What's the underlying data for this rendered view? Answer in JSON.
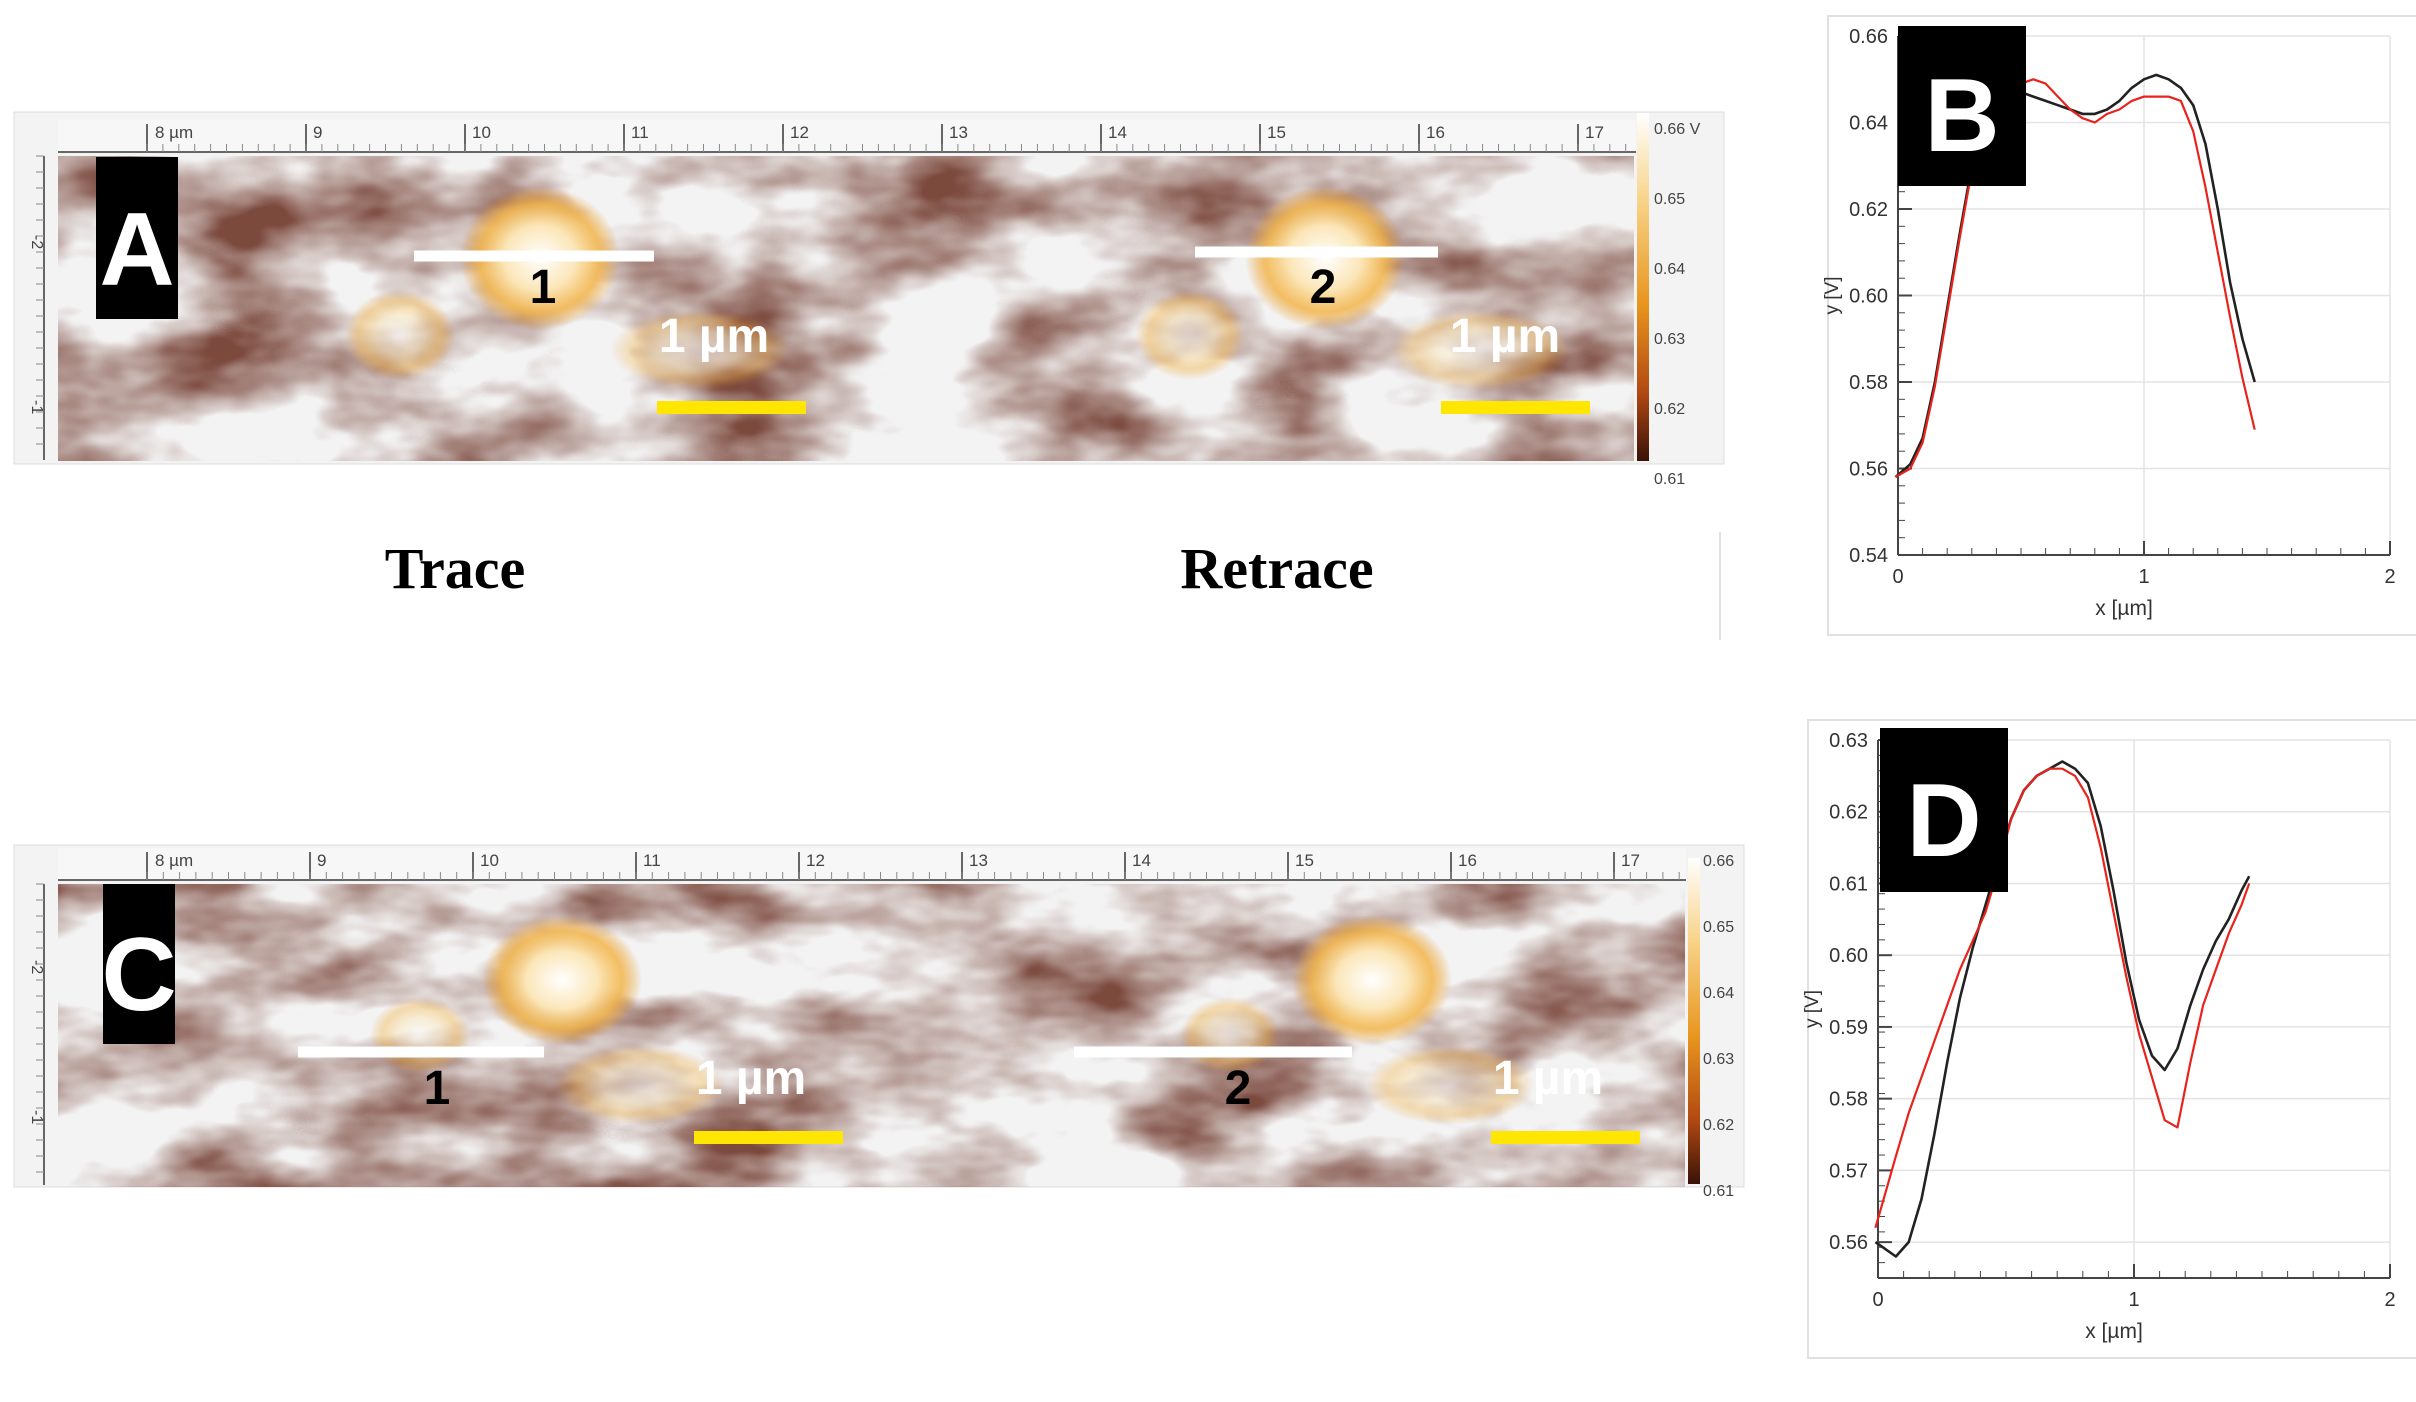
{
  "panels": {
    "A": {
      "letter": "A",
      "axis_unit_label": "8 µm",
      "x_ticks": [
        "9",
        "10",
        "11",
        "12",
        "13",
        "14",
        "15",
        "16",
        "17"
      ],
      "y_ticks": [
        "-2",
        "-1"
      ],
      "colorbar_ticks": [
        "0.66 V",
        "0.65",
        "0.64",
        "0.63",
        "0.62",
        "0.61"
      ],
      "line_labels": [
        "1",
        "2"
      ],
      "scale_label": "1 µm",
      "captions": [
        "Trace",
        "Retrace"
      ]
    },
    "C": {
      "letter": "C",
      "axis_unit_label": "8 µm",
      "x_ticks": [
        "9",
        "10",
        "11",
        "12",
        "13",
        "14",
        "15",
        "16",
        "17"
      ],
      "y_ticks": [
        "-2",
        "-1"
      ],
      "colorbar_ticks": [
        "0.66",
        "0.65",
        "0.64",
        "0.63",
        "0.62",
        "0.61"
      ],
      "line_labels": [
        "1",
        "2"
      ],
      "scale_label": "1 µm"
    }
  },
  "chart_data": [
    {
      "panel": "B",
      "type": "line",
      "title": "",
      "xlabel": "x [µm]",
      "ylabel": "y [V]",
      "xlim": [
        0,
        2
      ],
      "ylim": [
        0.54,
        0.66
      ],
      "x_ticks": [
        "0",
        "1",
        "2"
      ],
      "y_ticks": [
        "0.54",
        "0.56",
        "0.58",
        "0.60",
        "0.62",
        "0.64",
        "0.66"
      ],
      "grid": true,
      "series": [
        {
          "color": "#222222",
          "x": [
            -0.01,
            0.05,
            0.1,
            0.15,
            0.2,
            0.25,
            0.3,
            0.35,
            0.4,
            0.45,
            0.5,
            0.55,
            0.6,
            0.65,
            0.7,
            0.75,
            0.8,
            0.85,
            0.9,
            0.95,
            1.0,
            1.05,
            1.1,
            1.15,
            1.2,
            1.25,
            1.3,
            1.35,
            1.4,
            1.45
          ],
          "y": [
            0.558,
            0.561,
            0.567,
            0.58,
            0.597,
            0.614,
            0.63,
            0.641,
            0.645,
            0.647,
            0.647,
            0.646,
            0.645,
            0.644,
            0.643,
            0.642,
            0.642,
            0.643,
            0.645,
            0.648,
            0.65,
            0.651,
            0.65,
            0.648,
            0.644,
            0.635,
            0.62,
            0.603,
            0.59,
            0.58
          ]
        },
        {
          "color": "#e8231c",
          "x": [
            -0.01,
            0.05,
            0.1,
            0.15,
            0.2,
            0.25,
            0.3,
            0.35,
            0.4,
            0.45,
            0.5,
            0.55,
            0.6,
            0.65,
            0.7,
            0.75,
            0.8,
            0.85,
            0.9,
            0.95,
            1.0,
            1.05,
            1.1,
            1.15,
            1.2,
            1.25,
            1.3,
            1.35,
            1.4,
            1.45
          ],
          "y": [
            0.558,
            0.56,
            0.566,
            0.579,
            0.596,
            0.613,
            0.629,
            0.64,
            0.646,
            0.649,
            0.649,
            0.65,
            0.649,
            0.646,
            0.643,
            0.641,
            0.64,
            0.642,
            0.643,
            0.645,
            0.646,
            0.646,
            0.646,
            0.645,
            0.638,
            0.625,
            0.61,
            0.595,
            0.581,
            0.569
          ]
        }
      ]
    },
    {
      "panel": "D",
      "type": "line",
      "title": "",
      "xlabel": "x [µm]",
      "ylabel": "y [V]",
      "xlim": [
        0,
        2
      ],
      "ylim": [
        0.555,
        0.63
      ],
      "x_ticks": [
        "0",
        "1",
        "2"
      ],
      "y_ticks": [
        "0.56",
        "0.57",
        "0.58",
        "0.59",
        "0.60",
        "0.61",
        "0.62",
        "0.63"
      ],
      "grid": true,
      "series": [
        {
          "color": "#222222",
          "x": [
            -0.01,
            0.03,
            0.07,
            0.12,
            0.17,
            0.22,
            0.27,
            0.32,
            0.37,
            0.42,
            0.47,
            0.52,
            0.57,
            0.62,
            0.67,
            0.72,
            0.77,
            0.82,
            0.87,
            0.92,
            0.97,
            1.02,
            1.07,
            1.12,
            1.17,
            1.22,
            1.27,
            1.32,
            1.37,
            1.42,
            1.45
          ],
          "y": [
            0.56,
            0.559,
            0.558,
            0.56,
            0.566,
            0.575,
            0.585,
            0.594,
            0.601,
            0.607,
            0.613,
            0.619,
            0.623,
            0.625,
            0.626,
            0.627,
            0.626,
            0.624,
            0.618,
            0.609,
            0.599,
            0.591,
            0.586,
            0.584,
            0.587,
            0.593,
            0.598,
            0.602,
            0.605,
            0.609,
            0.611
          ]
        },
        {
          "color": "#e8231c",
          "x": [
            -0.01,
            0.03,
            0.07,
            0.12,
            0.17,
            0.22,
            0.27,
            0.32,
            0.37,
            0.42,
            0.47,
            0.52,
            0.57,
            0.62,
            0.67,
            0.72,
            0.77,
            0.82,
            0.87,
            0.92,
            0.97,
            1.02,
            1.07,
            1.12,
            1.17,
            1.22,
            1.27,
            1.32,
            1.37,
            1.42,
            1.45
          ],
          "y": [
            0.562,
            0.567,
            0.572,
            0.578,
            0.583,
            0.588,
            0.593,
            0.598,
            0.602,
            0.606,
            0.612,
            0.619,
            0.623,
            0.625,
            0.626,
            0.626,
            0.625,
            0.622,
            0.615,
            0.606,
            0.597,
            0.589,
            0.583,
            0.577,
            0.576,
            0.585,
            0.593,
            0.598,
            0.603,
            0.607,
            0.61
          ]
        }
      ]
    }
  ]
}
